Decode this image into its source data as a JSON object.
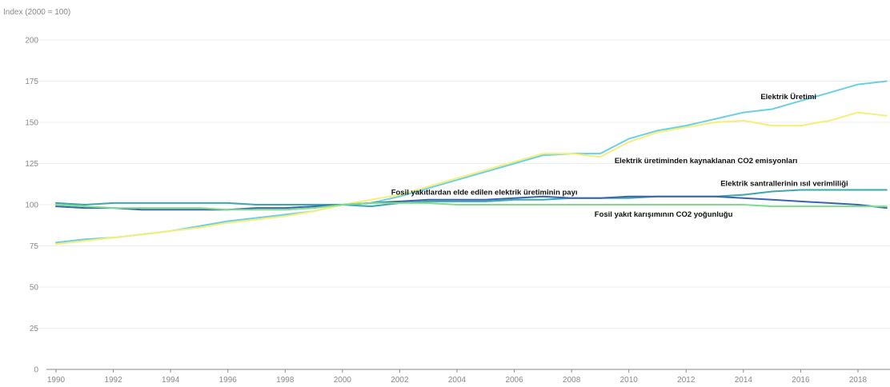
{
  "chart_data": {
    "type": "line",
    "title": "",
    "ylabel": "Index (2000 = 100)",
    "xlabel": "",
    "xlim": [
      1990,
      2019
    ],
    "ylim": [
      0,
      200
    ],
    "x_ticks": [
      "1990",
      "1992",
      "1994",
      "1996",
      "1998",
      "2000",
      "2002",
      "2004",
      "2006",
      "2008",
      "2010",
      "2012",
      "2014",
      "2016",
      "2018"
    ],
    "y_ticks": [
      "0",
      "25",
      "50",
      "75",
      "100",
      "125",
      "150",
      "175",
      "200"
    ],
    "grid": true,
    "legend": "inline",
    "x": [
      1990,
      1991,
      1992,
      1993,
      1994,
      1995,
      1996,
      1997,
      1998,
      1999,
      2000,
      2001,
      2002,
      2003,
      2004,
      2005,
      2006,
      2007,
      2008,
      2009,
      2010,
      2011,
      2012,
      2013,
      2014,
      2015,
      2016,
      2017,
      2018,
      2019
    ],
    "series": [
      {
        "name": "Elektrik Üretimi",
        "color": "#6ccfe6",
        "values": [
          77,
          79,
          80,
          82,
          84,
          87,
          90,
          92,
          94,
          96,
          100,
          101,
          105,
          110,
          115,
          120,
          125,
          130,
          131,
          131,
          140,
          145,
          148,
          152,
          156,
          158,
          163,
          168,
          173,
          175
        ]
      },
      {
        "name": "Elektrik üretiminden kaynaklanan CO2 emisyonları",
        "color": "#f5ef7a",
        "values": [
          76,
          78,
          80,
          82,
          84,
          86,
          89,
          91,
          93,
          96,
          100,
          103,
          106,
          111,
          116,
          121,
          126,
          131,
          131,
          129,
          138,
          144,
          147,
          150,
          151,
          148,
          148,
          151,
          156,
          154
        ]
      },
      {
        "name": "Elektrik santrallerinin ısıl verimliliği",
        "color": "#3aa8b0",
        "values": [
          101,
          100,
          101,
          101,
          101,
          101,
          101,
          100,
          100,
          100,
          100,
          99,
          101,
          102,
          102,
          102,
          103,
          103,
          104,
          104,
          104,
          105,
          105,
          105,
          106,
          108,
          109,
          109,
          109,
          109
        ]
      },
      {
        "name": "Fosil yakıtlardan elde edilen elektrik üretiminin payı",
        "color": "#3a64b0",
        "values": [
          99,
          98,
          98,
          97,
          97,
          97,
          97,
          98,
          98,
          99,
          100,
          101,
          102,
          103,
          103,
          103,
          104,
          105,
          104,
          104,
          105,
          105,
          105,
          105,
          104,
          103,
          102,
          101,
          100,
          98
        ]
      },
      {
        "name": "Fosil yakıt karışımının CO2 yoğunluğu",
        "color": "#7fdc8a",
        "values": [
          100,
          99,
          98,
          98,
          98,
          98,
          97,
          97,
          97,
          98,
          100,
          101,
          101,
          101,
          100,
          100,
          100,
          100,
          100,
          100,
          100,
          100,
          100,
          100,
          100,
          99,
          99,
          99,
          99,
          99
        ]
      }
    ],
    "annotations": [
      {
        "text": "Elektrik Üretimi",
        "series": 0,
        "at_x": 2014.6
      },
      {
        "text": "Elektrik üretiminden kaynaklanan CO2 emisyonları",
        "series": 1,
        "at_x": 2009.5
      },
      {
        "text": "Elektrik santrallerinin ısıl verimliliği",
        "series": 2,
        "at_x": 2013.2
      },
      {
        "text": "Fosil yakıtlardan elde edilen elektrik üretiminin payı",
        "series": 3,
        "at_x": 2001.7
      },
      {
        "text": "Fosil yakıt karışımının CO2 yoğunluğu",
        "series": 4,
        "at_x": 2008.8
      }
    ]
  }
}
